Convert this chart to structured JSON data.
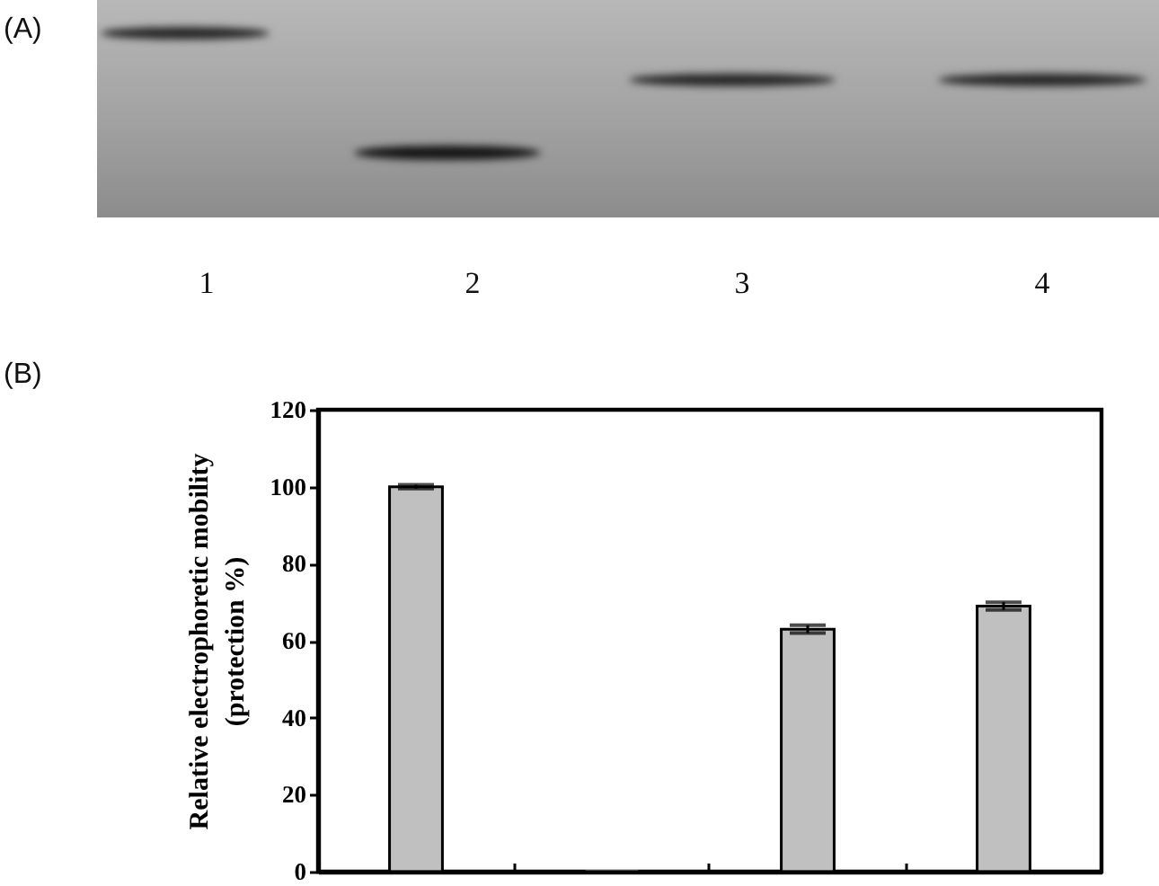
{
  "chart_data": {
    "type": "bar",
    "categories": [
      null,
      null,
      null,
      null
    ],
    "values": [
      100,
      0,
      63,
      69
    ],
    "errors": [
      0.5,
      null,
      1,
      1
    ],
    "color": "#c0c0c0",
    "ylabel": "Relative electrophoretic mobility (protection %)",
    "ylim": [
      0,
      120
    ],
    "yticks": [
      0,
      20,
      40,
      60,
      80,
      100,
      120
    ],
    "tick_labels": "y",
    "annotations": [
      "(A)",
      "1",
      "2",
      "3",
      "4",
      "(B)"
    ]
  }
}
